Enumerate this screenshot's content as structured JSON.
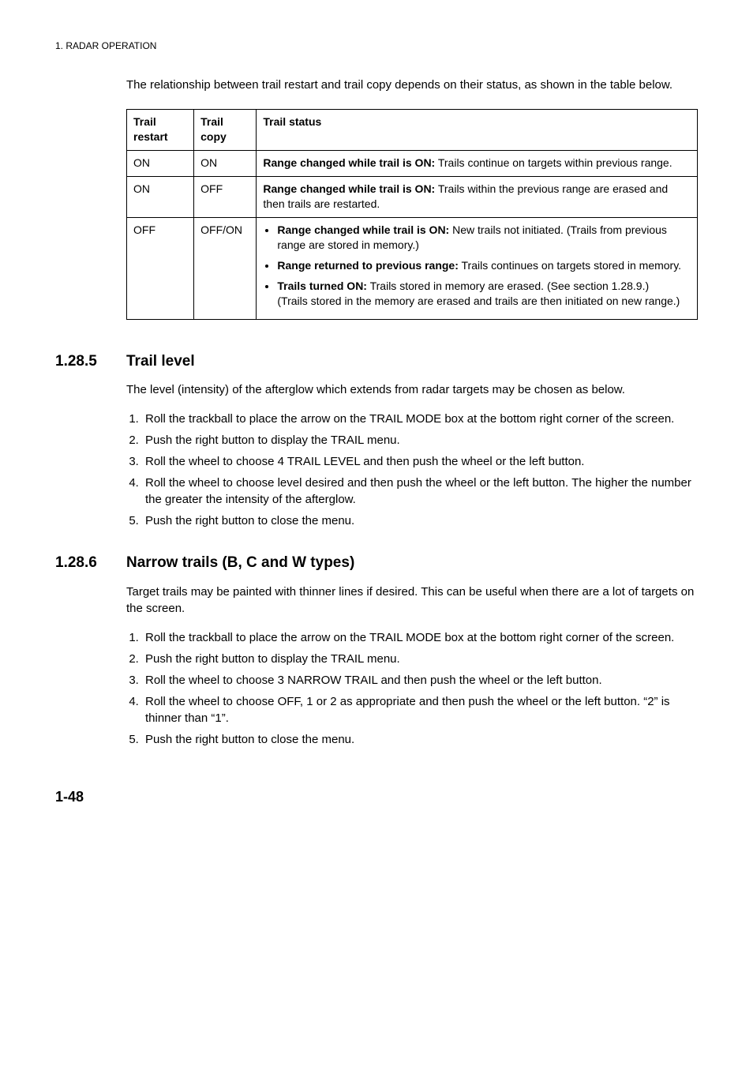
{
  "header": "1. RADAR OPERATION",
  "intro": "The relationship between trail restart and trail copy depends on their status, as shown in the table below.",
  "table": {
    "cols": [
      "Trail restart",
      "Trail copy",
      "Trail status"
    ],
    "row1": {
      "c0": "ON",
      "c1": "ON",
      "status_bold": "Range changed while trail is ON:",
      "status_rest": " Trails continue on targets within previous range."
    },
    "row2": {
      "c0": "ON",
      "c1": "OFF",
      "status_bold": "Range changed while trail is ON:",
      "status_rest": " Trails within the previous range are erased and then trails are restarted."
    },
    "row3": {
      "c0": "OFF",
      "c1": "OFF/ON",
      "b1_bold": "Range changed while trail is ON:",
      "b1_rest": " New trails not initiated. (Trails from previous range are stored in memory.)",
      "b2_bold": "Range returned to previous range:",
      "b2_rest": " Trails continues on targets stored in memory.",
      "b3_bold": "Trails turned ON:",
      "b3_rest": " Trails stored in memory are erased. (See section 1.28.9.)",
      "b3_line2": "(Trails stored in the memory are erased and trails are then initiated on new range.)"
    }
  },
  "sec1": {
    "num": "1.28.5",
    "title": "Trail level",
    "intro": "The level (intensity) of the afterglow which extends from radar targets may be chosen as below.",
    "steps": [
      "Roll the trackball to place the arrow on the TRAIL MODE box at the bottom right corner of the screen.",
      "Push the right button to display the TRAIL menu.",
      "Roll the wheel to choose 4 TRAIL LEVEL and then push the wheel or the left button.",
      "Roll the wheel to choose level desired and then push the wheel or the left button. The higher the number the greater the intensity of the afterglow.",
      "Push the right button to close the menu."
    ]
  },
  "sec2": {
    "num": "1.28.6",
    "title": "Narrow trails (B, C and W types)",
    "intro": "Target trails may be painted with thinner lines if desired. This can be useful when there are a lot of targets on the screen.",
    "steps": [
      "Roll the trackball to place the arrow on the TRAIL MODE box at the bottom right corner of the screen.",
      "Push the right button to display the TRAIL menu.",
      "Roll the wheel to choose 3 NARROW TRAIL and then push the wheel or the left button.",
      "Roll the wheel to choose OFF, 1 or 2 as appropriate and then push the wheel or the left button. “2” is thinner than “1”.",
      "Push the right button to close the menu."
    ]
  },
  "page": "1-48"
}
